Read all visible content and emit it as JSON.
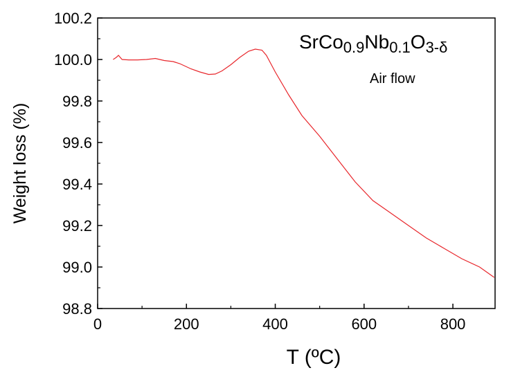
{
  "chart_data": {
    "type": "line",
    "xlabel": "T (ºC)",
    "ylabel": "Weight loss (%)",
    "xlim": [
      0,
      895
    ],
    "ylim": [
      98.8,
      100.2
    ],
    "x_ticks": [
      0,
      200,
      400,
      600,
      800
    ],
    "x_tick_labels": [
      "0",
      "200",
      "400",
      "600",
      "800"
    ],
    "y_ticks": [
      98.8,
      99.0,
      99.2,
      99.4,
      99.6,
      99.8,
      100.0,
      100.2
    ],
    "y_tick_labels": [
      "98.8",
      "99.0",
      "99.2",
      "99.4",
      "99.6",
      "99.8",
      "100.0",
      "100.2"
    ],
    "grid": false,
    "annotation": {
      "formula_parts": [
        {
          "text": "SrCo",
          "sub": false
        },
        {
          "text": "0.9",
          "sub": true
        },
        {
          "text": "Nb",
          "sub": false
        },
        {
          "text": "0.1",
          "sub": true
        },
        {
          "text": "O",
          "sub": false
        },
        {
          "text": "3-δ",
          "sub": true
        }
      ],
      "subtitle": "Air flow"
    },
    "series": [
      {
        "color": "#e8262b",
        "x": [
          35,
          42,
          47,
          55,
          70,
          90,
          110,
          130,
          150,
          170,
          185,
          195,
          210,
          230,
          250,
          265,
          280,
          300,
          320,
          340,
          355,
          370,
          380,
          400,
          430,
          460,
          500,
          540,
          580,
          620,
          660,
          700,
          740,
          780,
          820,
          860,
          893
        ],
        "y": [
          100.0,
          100.01,
          100.02,
          100.0,
          99.998,
          99.998,
          100.0,
          100.005,
          99.995,
          99.99,
          99.98,
          99.97,
          99.955,
          99.94,
          99.928,
          99.93,
          99.945,
          99.975,
          100.01,
          100.04,
          100.05,
          100.045,
          100.02,
          99.94,
          99.83,
          99.73,
          99.63,
          99.52,
          99.41,
          99.32,
          99.26,
          99.2,
          99.14,
          99.09,
          99.04,
          99.0,
          98.95
        ]
      }
    ]
  }
}
